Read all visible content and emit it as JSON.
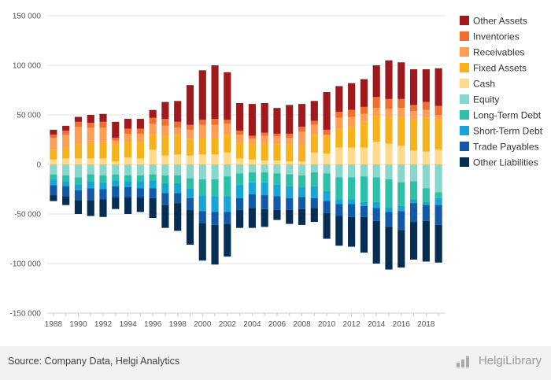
{
  "chart_data": {
    "type": "bar",
    "stacked": true,
    "title": "",
    "xlabel": "",
    "ylabel": "",
    "ylim": [
      -150000,
      150000
    ],
    "yticks": [
      150000,
      100000,
      50000,
      0,
      -50000,
      -100000,
      -150000
    ],
    "ytick_labels": [
      "150 000",
      "100 000",
      "50 000",
      "0",
      "-50 000",
      "-100 000",
      "-150 000"
    ],
    "grid": true,
    "legend_position": "right",
    "categories": [
      "1988",
      "1989",
      "1990",
      "1991",
      "1992",
      "1993",
      "1994",
      "1995",
      "1996",
      "1997",
      "1998",
      "1999",
      "2000",
      "2001",
      "2002",
      "2003",
      "2004",
      "2005",
      "2006",
      "2007",
      "2008",
      "2009",
      "2010",
      "2011",
      "2012",
      "2013",
      "2014",
      "2015",
      "2016",
      "2017",
      "2018",
      "2019"
    ],
    "xtick_labels": [
      "1988",
      "1990",
      "1992",
      "1994",
      "1996",
      "1998",
      "2000",
      "2002",
      "2004",
      "2006",
      "2008",
      "2010",
      "2012",
      "2014",
      "2016",
      "2018"
    ],
    "assets": [
      {
        "name": "Cash",
        "color": "#ffd98c",
        "values": [
          5000,
          6000,
          6000,
          6000,
          6000,
          3000,
          7000,
          6000,
          15000,
          9000,
          10000,
          9000,
          10000,
          10000,
          12000,
          6000,
          5000,
          4000,
          4000,
          3000,
          3000,
          12000,
          11000,
          17000,
          17000,
          17000,
          23000,
          21000,
          19000,
          14000,
          13000,
          15000
        ]
      },
      {
        "name": "Fixed Assets",
        "color": "#f5b21a",
        "values": [
          10000,
          11000,
          14000,
          16000,
          16000,
          17000,
          16000,
          17000,
          15000,
          20000,
          20000,
          17000,
          17000,
          17000,
          18000,
          16000,
          15000,
          17000,
          16000,
          17000,
          16000,
          18000,
          17000,
          19000,
          21000,
          26000,
          26000,
          27000,
          29000,
          32000,
          34000,
          31000
        ]
      },
      {
        "name": "Receivables",
        "color": "#fc9f55",
        "values": [
          12000,
          13000,
          18000,
          15000,
          15000,
          4000,
          8000,
          8000,
          11000,
          10000,
          7000,
          9000,
          13000,
          13000,
          11000,
          8000,
          6000,
          8000,
          8000,
          7000,
          14000,
          10000,
          2000,
          11000,
          10000,
          8000,
          8000,
          8000,
          9000,
          8000,
          8000,
          4000
        ]
      },
      {
        "name": "Inventories",
        "color": "#f06e30",
        "values": [
          3000,
          4000,
          5000,
          5000,
          6000,
          3000,
          5000,
          5000,
          6000,
          7000,
          6000,
          5000,
          5000,
          6000,
          4000,
          4000,
          3000,
          3000,
          3000,
          4000,
          5000,
          4000,
          5000,
          6000,
          7000,
          7000,
          11000,
          10000,
          9000,
          6000,
          8000,
          9000
        ]
      },
      {
        "name": "Other Assets",
        "color": "#a0191d",
        "values": [
          5000,
          5000,
          5000,
          8000,
          8000,
          16000,
          10000,
          10000,
          8000,
          17000,
          21000,
          40000,
          50000,
          54000,
          48000,
          28000,
          32000,
          30000,
          26000,
          29000,
          23000,
          20000,
          38000,
          26000,
          27000,
          28000,
          32000,
          39000,
          37000,
          36000,
          33000,
          38000
        ]
      }
    ],
    "liabilities": [
      {
        "name": "Equity",
        "color": "#85d8cb",
        "values": [
          -10000,
          -11000,
          -13000,
          -10000,
          -11000,
          -10000,
          -11000,
          -11000,
          -10000,
          -11000,
          -11000,
          -14000,
          -15000,
          -15000,
          -12000,
          -9000,
          -8000,
          -8000,
          -9000,
          -10000,
          -11000,
          -8000,
          -9000,
          -13000,
          -13000,
          -12000,
          -13000,
          -15000,
          -18000,
          -17000,
          -24000,
          -28000
        ]
      },
      {
        "name": "Long-Term Debt",
        "color": "#2dc0a8",
        "values": [
          -5000,
          -6000,
          -7000,
          -7000,
          -7000,
          -6000,
          -6000,
          -6000,
          -6000,
          -8000,
          -8000,
          -10000,
          -16000,
          -17000,
          -20000,
          -12000,
          -10000,
          -10000,
          -11000,
          -12000,
          -12000,
          -14000,
          -18000,
          -22000,
          -22000,
          -26000,
          -25000,
          -28000,
          -24000,
          -18000,
          -14000,
          -6000
        ]
      },
      {
        "name": "Short-Term Debt",
        "color": "#17a5d6",
        "values": [
          -6000,
          -5000,
          -6000,
          -7000,
          -7000,
          -6000,
          -6000,
          -7000,
          -8000,
          -10000,
          -10000,
          -10000,
          -16000,
          -16000,
          -16000,
          -13000,
          -12000,
          -13000,
          -12000,
          -12000,
          -10000,
          -12000,
          -10000,
          -5000,
          -5000,
          -4000,
          -6000,
          -5000,
          -5000,
          -4000,
          -3000,
          -7000
        ]
      },
      {
        "name": "Trade Payables",
        "color": "#125aa8",
        "values": [
          -10000,
          -10000,
          -10000,
          -12000,
          -10000,
          -11000,
          -10000,
          -9000,
          -10000,
          -12000,
          -10000,
          -12000,
          -12000,
          -13000,
          -12000,
          -12000,
          -14000,
          -14000,
          -14000,
          -12000,
          -12000,
          -10000,
          -12000,
          -12000,
          -13000,
          -11000,
          -13000,
          -15000,
          -19000,
          -19000,
          -16000,
          -20000
        ]
      },
      {
        "name": "Other Liabilities",
        "color": "#062d52",
        "values": [
          -6000,
          -9000,
          -14000,
          -16000,
          -18000,
          -12000,
          -17000,
          -15000,
          -20000,
          -23000,
          -28000,
          -35000,
          -38000,
          -40000,
          -33000,
          -18000,
          -20000,
          -18000,
          -10000,
          -14000,
          -16000,
          -14000,
          -26000,
          -30000,
          -30000,
          -36000,
          -43000,
          -43000,
          -38000,
          -38000,
          -41000,
          -38000
        ]
      }
    ],
    "legend": [
      {
        "name": "Other Assets",
        "color": "#a0191d"
      },
      {
        "name": "Inventories",
        "color": "#f06e30"
      },
      {
        "name": "Receivables",
        "color": "#fc9f55"
      },
      {
        "name": "Fixed Assets",
        "color": "#f5b21a"
      },
      {
        "name": "Cash",
        "color": "#ffd98c"
      },
      {
        "name": "Equity",
        "color": "#85d8cb"
      },
      {
        "name": "Long-Term Debt",
        "color": "#2dc0a8"
      },
      {
        "name": "Short-Term Debt",
        "color": "#17a5d6"
      },
      {
        "name": "Trade Payables",
        "color": "#125aa8"
      },
      {
        "name": "Other Liabilities",
        "color": "#062d52"
      }
    ]
  },
  "footer": {
    "source": "Source: Company Data, Helgi Analytics",
    "brand": "HelgiLibrary"
  }
}
